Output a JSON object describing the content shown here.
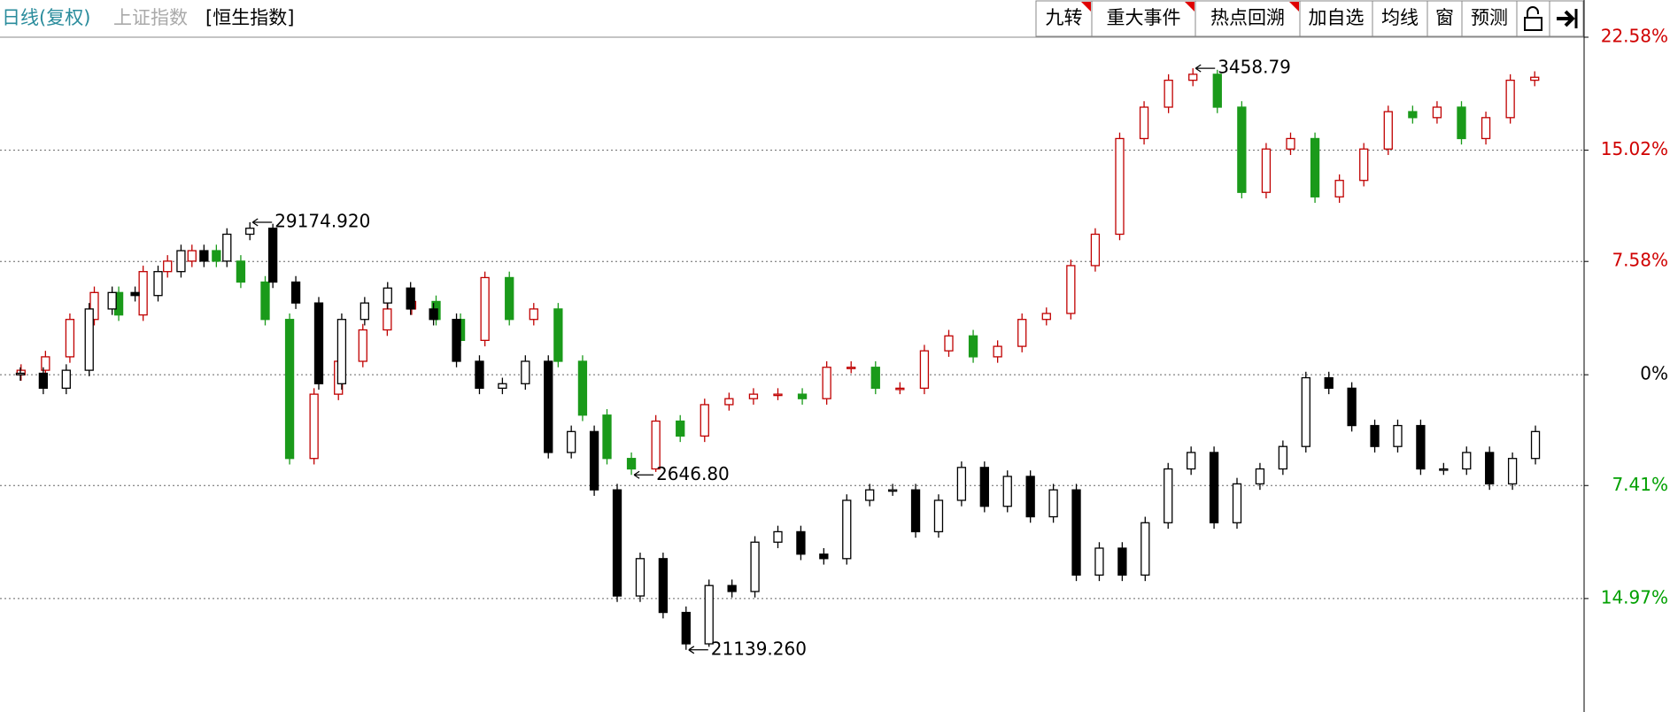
{
  "toolbar": {
    "left": [
      "日线(复权)",
      "上证指数",
      "[恒生指数]"
    ],
    "buttons": [
      "九转",
      "重大事件",
      "热点回溯",
      "加自选",
      "均线",
      "窗",
      "预测"
    ]
  },
  "chart_data": {
    "type": "candlestick",
    "ylim": [
      -22.56,
      22.58
    ],
    "yticks": [
      {
        "value": 22.58,
        "label": "22.58%"
      },
      {
        "value": 15.02,
        "label": "15.02%"
      },
      {
        "value": 7.58,
        "label": "7.58%"
      },
      {
        "value": 0,
        "label": "0%"
      },
      {
        "value": -7.41,
        "label": "7.41%"
      },
      {
        "value": -14.97,
        "label": "14.97%"
      }
    ],
    "grid": true,
    "axis_colors": {
      "positive": "#d00000",
      "zero": "#000000",
      "negative": "#00a000"
    },
    "series": [
      {
        "up_color": "#c00000",
        "down_color": "#1a9a1a",
        "hollow_up": true,
        "max_label": "3458.79",
        "min_label": "2646.80",
        "open": [
          0,
          0.3,
          1.2,
          3.7,
          5.5,
          4,
          6.9,
          7.6,
          8.3,
          7.6,
          6.2,
          3.7,
          -5.6,
          -1.3,
          0.9,
          3,
          4.4,
          4.9,
          3.7,
          2.3,
          6.5,
          3.7,
          4.4,
          0.9,
          -2.7,
          -5.6,
          -6.3,
          -3.1,
          -4.1,
          -2,
          -1.6,
          -1.3,
          -1.3,
          -1.6,
          0.5,
          0.5,
          -0.9,
          -0.9,
          1.6,
          2.6,
          1.2,
          1.9,
          3.7,
          4.1,
          7.3,
          9.4,
          15.8,
          17.9,
          19.7,
          20.1,
          17.9,
          12.2,
          15.1,
          15.8,
          11.9,
          13,
          15.1,
          17.6,
          17.2,
          17.9,
          15.8,
          17.2,
          19.7
        ],
        "high": [
          0.7,
          1.6,
          4.1,
          5.9,
          5.9,
          7.3,
          8,
          8.7,
          8.7,
          8,
          6.6,
          4.1,
          -0.9,
          1.3,
          3.4,
          4.8,
          5.3,
          5.3,
          4.1,
          6.9,
          6.9,
          4.8,
          4.8,
          1.3,
          -2.3,
          -5.2,
          -2.7,
          -2.7,
          -1.6,
          -1.2,
          -0.9,
          -0.9,
          -0.9,
          0.9,
          0.9,
          0.9,
          -0.5,
          2,
          3,
          3,
          2.3,
          4.1,
          4.5,
          7.7,
          9.8,
          16.2,
          18.3,
          20.1,
          20.5,
          20.4,
          18.3,
          15.5,
          16.2,
          16.2,
          13.4,
          15.5,
          18,
          18,
          18.3,
          18.3,
          17.6,
          20.1,
          20.3
        ],
        "low": [
          -0.4,
          -0.1,
          0.8,
          3.3,
          3.6,
          3.6,
          6.5,
          7.2,
          7.2,
          5.8,
          3.3,
          -6,
          -6,
          -1.7,
          0.5,
          2.6,
          4,
          3.3,
          1.9,
          1.9,
          3.3,
          3.3,
          0.5,
          -3.1,
          -6,
          -6.7,
          -6.5,
          -4.5,
          -4.5,
          -2.4,
          -2,
          -1.7,
          -2,
          -2,
          0.1,
          -1.3,
          -1.3,
          -1.3,
          1.2,
          0.8,
          0.8,
          1.5,
          3.3,
          3.7,
          6.9,
          9,
          15.4,
          17.5,
          19.3,
          17.5,
          11.8,
          11.8,
          14.7,
          11.5,
          11.5,
          12.6,
          14.7,
          16.8,
          16.8,
          15.4,
          15.4,
          16.8,
          19.3
        ],
        "close": [
          0.3,
          1.2,
          3.7,
          5.5,
          4,
          6.9,
          7.6,
          8.3,
          7.6,
          6.2,
          3.7,
          -5.6,
          -1.3,
          0.9,
          3,
          4.4,
          4.9,
          3.7,
          2.3,
          6.5,
          3.7,
          4.4,
          0.9,
          -2.7,
          -5.6,
          -6.3,
          -3.1,
          -4.1,
          -2,
          -1.6,
          -1.3,
          -1.3,
          -1.6,
          0.5,
          0.5,
          -0.9,
          -0.9,
          1.6,
          2.6,
          1.2,
          1.9,
          3.7,
          4.1,
          7.3,
          9.4,
          15.8,
          17.9,
          19.7,
          20.1,
          17.9,
          12.2,
          15.1,
          15.8,
          11.9,
          13,
          15.1,
          17.6,
          17.2,
          17.9,
          15.8,
          17.2,
          19.7,
          19.9
        ]
      },
      {
        "up_color": "#000000",
        "down_color": "#000000",
        "hollow_up": true,
        "max_label": "29174.920",
        "min_label": "21139.260",
        "open": [
          0,
          0.1,
          -0.9,
          0.3,
          4.4,
          5.5,
          5.3,
          6.9,
          8.3,
          7.6,
          9.4,
          9.8,
          6.2,
          4.8,
          -0.6,
          3.7,
          4.8,
          5.8,
          4.4,
          3.7,
          0.9,
          -0.9,
          -0.6,
          0.9,
          -5.2,
          -3.8,
          -7.7,
          -14.8,
          -12.3,
          -15.9,
          -18,
          -14.1,
          -14.5,
          -11.2,
          -10.5,
          -12,
          -12.3,
          -8.4,
          -7.7,
          -7.7,
          -10.5,
          -8.4,
          -6.2,
          -8.8,
          -6.8,
          -9.5,
          -7.7,
          -13.4,
          -11.6,
          -13.4,
          -9.9,
          -6.3,
          -5.2,
          -9.9,
          -7.3,
          -6.3,
          -4.8,
          -0.2,
          -0.9,
          -3.4,
          -4.8,
          -3.4,
          -6.3,
          -6.3,
          -5.2,
          -7.3,
          -5.6
        ],
        "high": [
          0.5,
          0.5,
          0.7,
          4.8,
          5.9,
          5.9,
          7.3,
          8.7,
          8.7,
          9.8,
          10.2,
          10.1,
          6.6,
          5.2,
          4.1,
          5.2,
          6.2,
          6.2,
          4.8,
          4.1,
          1.3,
          -0.2,
          1.3,
          1.3,
          -3.4,
          -3.4,
          -7.3,
          -11.9,
          -11.9,
          -15.5,
          -13.7,
          -13.7,
          -10.8,
          -10.1,
          -10.1,
          -11.6,
          -8,
          -7.3,
          -7.3,
          -7.3,
          -8,
          -5.8,
          -5.8,
          -6.4,
          -6.4,
          -7.3,
          -7.3,
          -11.2,
          -11.2,
          -9.5,
          -5.9,
          -4.8,
          -4.8,
          -6.9,
          -5.9,
          -4.4,
          0.2,
          0.2,
          -0.5,
          -3,
          -3,
          -3,
          -5.9,
          -4.8,
          -4.8,
          -5.2,
          -3.4
        ],
        "low": [
          -0.4,
          -1.3,
          -1.3,
          -0.1,
          4,
          4.9,
          4.9,
          6.5,
          7.2,
          7.2,
          9,
          5.8,
          4.4,
          -1,
          -1,
          3.3,
          4.4,
          4,
          3.3,
          0.5,
          -1.3,
          -1.3,
          -1,
          -5.6,
          -5.6,
          -8.1,
          -15.2,
          -15.2,
          -16.3,
          -18.4,
          -18.2,
          -14.9,
          -14.9,
          -11.6,
          -12.4,
          -12.7,
          -12.7,
          -8.8,
          -8.1,
          -10.9,
          -10.9,
          -8.8,
          -9.2,
          -9.2,
          -9.9,
          -9.9,
          -13.8,
          -13.8,
          -13.8,
          -13.8,
          -10.3,
          -6.7,
          -10.3,
          -10.3,
          -7.7,
          -6.7,
          -5.2,
          -1.3,
          -3.8,
          -5.2,
          -5.2,
          -6.7,
          -6.7,
          -6.7,
          -7.7,
          -7.7,
          -6
        ],
        "close": [
          0.1,
          -0.9,
          0.3,
          4.4,
          5.5,
          5.3,
          6.9,
          8.3,
          7.6,
          9.4,
          9.8,
          6.2,
          4.8,
          -0.6,
          3.7,
          4.8,
          5.8,
          4.4,
          3.7,
          0.9,
          -0.9,
          -0.6,
          0.9,
          -5.2,
          -3.8,
          -7.7,
          -14.8,
          -12.3,
          -15.9,
          -18,
          -14.1,
          -14.5,
          -11.2,
          -10.5,
          -12,
          -12.3,
          -8.4,
          -7.7,
          -7.7,
          -10.5,
          -8.4,
          -6.2,
          -8.8,
          -6.8,
          -9.5,
          -7.7,
          -13.4,
          -11.6,
          -13.4,
          -9.9,
          -6.3,
          -5.2,
          -9.9,
          -7.3,
          -6.3,
          -4.8,
          -0.2,
          -0.9,
          -3.4,
          -4.8,
          -3.4,
          -6.3,
          -6.3,
          -5.2,
          -7.3,
          -5.6,
          -3.8
        ]
      }
    ]
  }
}
